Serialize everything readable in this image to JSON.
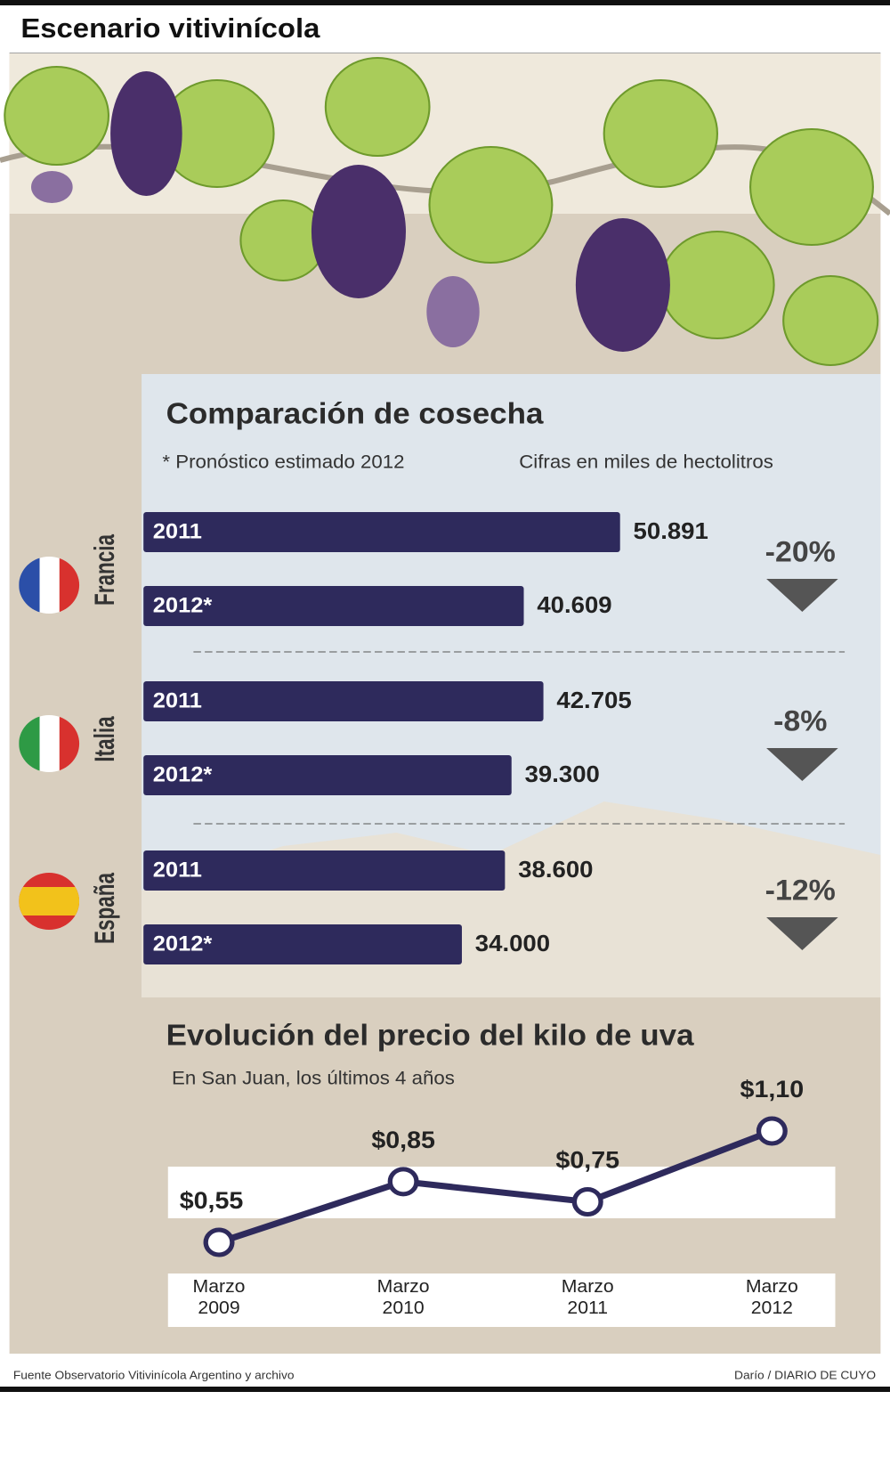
{
  "title": "Escenario vitivinícola",
  "source": "Fuente Observatorio Vitivinícola Argentino y archivo",
  "credit": "Darío / DIARIO DE CUYO",
  "chart_data": [
    {
      "type": "hbar",
      "title": "Comparación de cosecha",
      "note": "* Pronóstico estimado 2012",
      "units": "Cifras en miles de hectolitros",
      "categories": [
        "Francia",
        "Italia",
        "España"
      ],
      "series": [
        {
          "name": "2011",
          "color": "#2e2a5c",
          "values": [
            50891,
            42705,
            38600
          ],
          "value_labels": [
            "50.891",
            "42.705",
            "38.600"
          ]
        },
        {
          "name": "2012*",
          "color": "#2e2a5c",
          "values": [
            40609,
            39300,
            34000
          ],
          "value_labels": [
            "40.609",
            "39.300",
            "34.000"
          ]
        }
      ],
      "change_labels": [
        "-20%",
        "-8%",
        "-12%"
      ]
    },
    {
      "type": "line",
      "title": "Evolución del precio del kilo de uva",
      "subtitle": "En San Juan, los últimos 4 años",
      "categories": [
        "Marzo 2009",
        "Marzo 2010",
        "Marzo 2011",
        "Marzo 2012"
      ],
      "values": [
        0.55,
        0.85,
        0.75,
        1.1
      ],
      "value_labels": [
        "$0,55",
        "$0,85",
        "$0,75",
        "$1,10"
      ],
      "color": "#2e2a5c"
    }
  ]
}
